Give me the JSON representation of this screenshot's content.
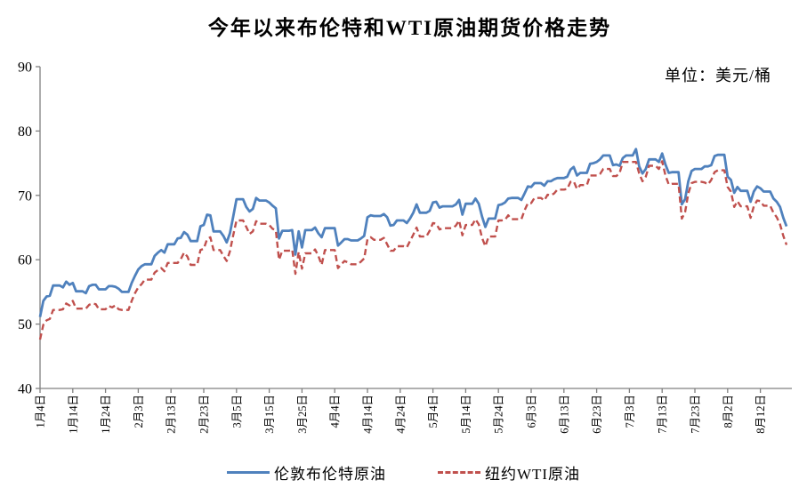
{
  "header": {
    "title": "今年以来布伦特和WTI原油期货价格走势",
    "unit_label": "单位：美元/桶"
  },
  "legend": {
    "items": [
      {
        "label": "伦敦布伦特原油",
        "color": "#4F81BD",
        "line_style": "solid"
      },
      {
        "label": "纽约WTI原油",
        "color": "#C0504D",
        "line_style": "dashed"
      }
    ]
  },
  "colors": {
    "axis": "#808080",
    "text": "#000000",
    "brent_line": "#4F81BD",
    "wti_line": "#C0504D"
  },
  "chart_data": {
    "type": "line",
    "title": "今年以来布伦特和WTI原油期货价格走势",
    "unit": "美元/桶",
    "grid": false,
    "legend_position": "bottom",
    "y_axis": {
      "range": [
        40,
        90
      ],
      "ticks": [
        40,
        50,
        60,
        70,
        80,
        90
      ]
    },
    "x_axis": {
      "tick_labels": [
        "1月4日",
        "1月14日",
        "1月24日",
        "2月3日",
        "2月13日",
        "2月23日",
        "3月5日",
        "3月15日",
        "3月25日",
        "4月4日",
        "4月14日",
        "4月24日",
        "5月4日",
        "5月14日",
        "5月24日",
        "6月3日",
        "6月13日",
        "6月23日",
        "7月3日",
        "7月13日",
        "7月23日",
        "8月2日",
        "8月12日"
      ],
      "tick_interval_days": 10,
      "total_days": 228,
      "encoding": "5 weekday closes per week starting 1月4日(Mon); weekend/holiday days repeat previous close"
    },
    "series": [
      {
        "name": "伦敦布伦特原油",
        "color": "#4F81BD",
        "style": "solid",
        "values": [
          51.1,
          53.6,
          54.3,
          54.4,
          56.0,
          55.7,
          56.6,
          56.1,
          56.4,
          55.1,
          54.8,
          55.9,
          56.1,
          56.1,
          55.4,
          55.9,
          55.9,
          55.8,
          55.5,
          55.0,
          56.4,
          57.5,
          58.5,
          59.0,
          59.3,
          60.6,
          61.1,
          61.5,
          61.1,
          62.4,
          63.3,
          63.4,
          64.3,
          63.9,
          62.9,
          65.2,
          65.4,
          67.0,
          66.9,
          64.4,
          63.7,
          62.7,
          64.1,
          66.7,
          69.4,
          68.2,
          67.5,
          67.9,
          69.6,
          69.2,
          68.9,
          68.4,
          68.0,
          63.3,
          64.5,
          64.6,
          60.8,
          64.4,
          61.9,
          64.6,
          65.0,
          64.1,
          63.5,
          64.9,
          64.9,
          62.2,
          62.7,
          63.2,
          63.2,
          63.0,
          63.3,
          63.7,
          66.6,
          66.9,
          66.8,
          67.1,
          66.6,
          65.3,
          65.4,
          66.1,
          65.7,
          66.4,
          67.3,
          68.6,
          67.3,
          67.6,
          68.9,
          69.0,
          68.1,
          68.3,
          68.3,
          68.6,
          69.3,
          67.0,
          68.7,
          69.5,
          68.7,
          66.7,
          65.1,
          66.4,
          68.5,
          68.6,
          68.9,
          69.5,
          69.6,
          69.3,
          70.3,
          71.4,
          71.3,
          71.9,
          71.5,
          72.2,
          72.2,
          72.5,
          72.7,
          72.9,
          74.0,
          74.4,
          73.1,
          73.5,
          74.9,
          75.0,
          75.2,
          75.6,
          76.2,
          74.7,
          74.8,
          74.6,
          75.8,
          76.2,
          77.2,
          74.5,
          73.4,
          74.1,
          75.6,
          75.2,
          76.5,
          74.8,
          73.5,
          73.6,
          68.6,
          69.4,
          72.2,
          73.8,
          74.1,
          74.5,
          74.5,
          74.7,
          76.1,
          76.3,
          72.9,
          72.4,
          70.4,
          71.3,
          70.7,
          69.0,
          70.6,
          71.4,
          71.1,
          70.6,
          69.5,
          69.0,
          68.2,
          66.5,
          65.2
        ]
      },
      {
        "name": "纽约WTI原油",
        "color": "#C0504D",
        "style": "dashed",
        "values": [
          47.6,
          49.9,
          50.6,
          50.8,
          52.2,
          52.3,
          53.2,
          52.9,
          53.6,
          52.4,
          52.4,
          53.0,
          53.2,
          53.1,
          52.3,
          52.8,
          52.6,
          52.9,
          52.3,
          52.2,
          53.6,
          54.8,
          55.7,
          56.2,
          56.9,
          58.0,
          58.4,
          58.7,
          58.2,
          59.5,
          59.5,
          60.1,
          61.1,
          60.5,
          59.2,
          61.5,
          61.7,
          63.2,
          63.5,
          61.5,
          60.6,
          59.8,
          61.3,
          63.8,
          66.1,
          65.1,
          64.0,
          64.4,
          66.0,
          65.6,
          65.4,
          64.8,
          64.6,
          60.0,
          61.4,
          61.6,
          57.8,
          61.2,
          58.6,
          61.0,
          61.6,
          60.6,
          59.2,
          61.5,
          61.5,
          58.7,
          59.3,
          59.8,
          59.6,
          59.3,
          59.7,
          60.2,
          63.2,
          63.5,
          63.1,
          63.4,
          62.4,
          61.4,
          61.4,
          62.1,
          61.9,
          62.9,
          63.9,
          65.0,
          63.6,
          64.5,
          65.7,
          65.6,
          64.7,
          64.9,
          64.9,
          65.3,
          66.1,
          63.8,
          65.4,
          66.3,
          65.5,
          63.4,
          62.1,
          63.6,
          66.1,
          66.1,
          66.2,
          66.9,
          66.3,
          66.3,
          67.7,
          68.8,
          68.8,
          69.6,
          69.2,
          70.1,
          70.0,
          70.3,
          70.9,
          71.0,
          72.1,
          72.2,
          71.0,
          71.6,
          73.1,
          73.1,
          73.1,
          73.3,
          74.1,
          73.0,
          73.0,
          73.5,
          75.2,
          75.2,
          75.2,
          73.4,
          72.2,
          72.9,
          74.6,
          74.1,
          75.3,
          73.1,
          71.7,
          71.8,
          66.4,
          67.4,
          70.3,
          71.9,
          72.1,
          72.0,
          71.7,
          72.4,
          73.6,
          73.9,
          71.3,
          70.6,
          68.2,
          69.1,
          68.3,
          66.5,
          68.3,
          69.2,
          69.1,
          68.4,
          67.3,
          66.6,
          65.5,
          63.7,
          62.3
        ]
      }
    ]
  }
}
